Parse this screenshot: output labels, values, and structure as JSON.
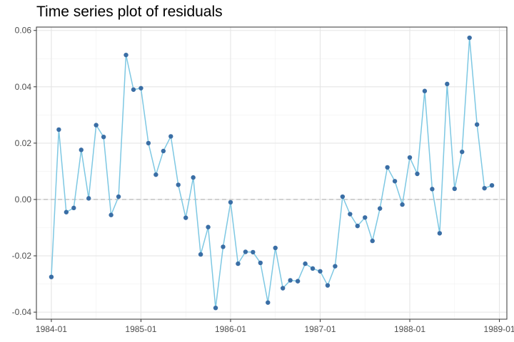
{
  "chart_data": {
    "type": "line",
    "title": "Time series plot of residuals",
    "xlabel": "",
    "ylabel": "",
    "x_ticks": [
      "1984-01",
      "1985-01",
      "1986-01",
      "1987-01",
      "1988-01",
      "1989-01"
    ],
    "y_ticks": [
      "-0.04",
      "-0.02",
      "0.00",
      "0.02",
      "0.04",
      "0.06"
    ],
    "xlim": [
      "1983-11",
      "1989-02"
    ],
    "ylim": [
      -0.0425,
      0.0612
    ],
    "reference_line": {
      "y": 0,
      "style": "dashed"
    },
    "grid": true,
    "x": [
      "1984-01",
      "1984-02",
      "1984-03",
      "1984-04",
      "1984-05",
      "1984-06",
      "1984-07",
      "1984-08",
      "1984-09",
      "1984-10",
      "1984-11",
      "1984-12",
      "1985-01",
      "1985-02",
      "1985-03",
      "1985-04",
      "1985-05",
      "1985-06",
      "1985-07",
      "1985-08",
      "1985-09",
      "1985-10",
      "1985-11",
      "1985-12",
      "1986-01",
      "1986-02",
      "1986-03",
      "1986-04",
      "1986-05",
      "1986-06",
      "1986-07",
      "1986-08",
      "1986-09",
      "1986-10",
      "1986-11",
      "1986-12",
      "1987-01",
      "1987-02",
      "1987-03",
      "1987-04",
      "1987-05",
      "1987-06",
      "1987-07",
      "1987-08",
      "1987-09",
      "1987-10",
      "1987-11",
      "1987-12",
      "1988-01",
      "1988-02",
      "1988-03",
      "1988-04",
      "1988-05",
      "1988-06",
      "1988-07",
      "1988-08",
      "1988-09",
      "1988-10",
      "1988-11",
      "1988-12"
    ],
    "series": [
      {
        "values": [
          -0.0275,
          0.0248,
          -0.0045,
          -0.003,
          0.0176,
          0.0004,
          0.0264,
          0.0222,
          -0.0055,
          0.001,
          0.0513,
          0.039,
          0.0395,
          0.02,
          0.0088,
          0.0172,
          0.0224,
          0.0052,
          -0.0065,
          0.0078,
          -0.0195,
          -0.0098,
          -0.0385,
          -0.0168,
          -0.001,
          -0.0228,
          -0.0186,
          -0.0187,
          -0.0225,
          -0.0366,
          -0.0172,
          -0.0315,
          -0.0287,
          -0.029,
          -0.0228,
          -0.0245,
          -0.0255,
          -0.0305,
          -0.0237,
          0.001,
          -0.0052,
          -0.0094,
          -0.0064,
          -0.0147,
          -0.0032,
          0.0114,
          0.0065,
          -0.0018,
          0.0149,
          0.0091,
          0.0385,
          0.0037,
          -0.012,
          0.041,
          0.0038,
          0.0169,
          0.0574,
          0.0266,
          0.004,
          0.005
        ],
        "line_color": "#7ec8e3",
        "point_color": "#3a6ea5"
      }
    ]
  }
}
